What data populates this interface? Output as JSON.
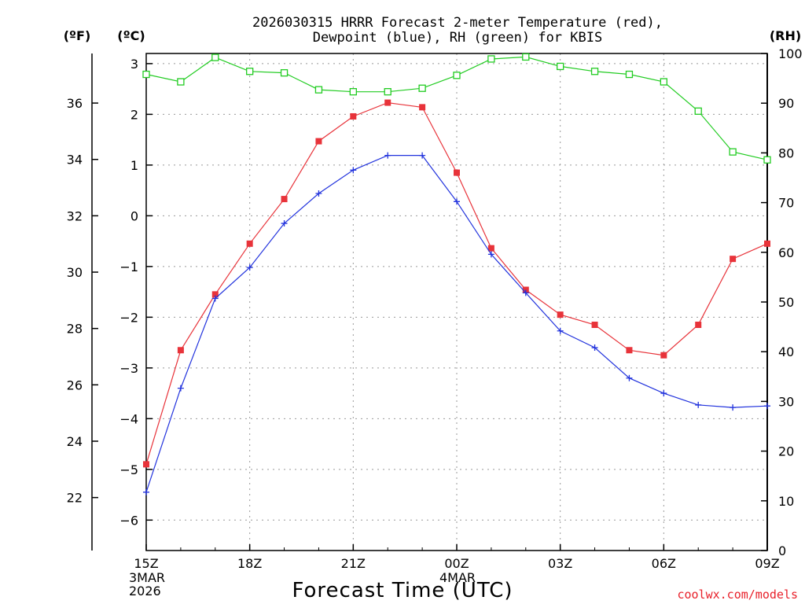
{
  "chart_data": {
    "type": "line",
    "title_lines": [
      "2026030315 HRRR Forecast 2-meter Temperature (red),",
      "Dewpoint (blue), RH (green) for KBIS"
    ],
    "xlabel": "Forecast Time (UTC)",
    "credit": "coolwx.com/models",
    "axes": {
      "left_f_unit": "(ºF)",
      "left_c_unit": "(ºC)",
      "right_unit": "(RH)",
      "c_range": [
        -6.6,
        3.2
      ],
      "rh_range": [
        0,
        100
      ],
      "f_ticks": [
        22,
        24,
        26,
        28,
        30,
        32,
        34,
        36
      ],
      "c_ticks": [
        -6,
        -5,
        -4,
        -3,
        -2,
        -1,
        0,
        1,
        2,
        3
      ],
      "rh_ticks": [
        0,
        10,
        20,
        30,
        40,
        50,
        60,
        70,
        80,
        90,
        100
      ],
      "x_ticks": [
        {
          "hour": 0,
          "label": "15Z",
          "date1": "3MAR",
          "date2": "2026"
        },
        {
          "hour": 3,
          "label": "18Z"
        },
        {
          "hour": 6,
          "label": "21Z"
        },
        {
          "hour": 9,
          "label": "00Z",
          "date1": "4MAR"
        },
        {
          "hour": 12,
          "label": "03Z"
        },
        {
          "hour": 15,
          "label": "06Z"
        },
        {
          "hour": 18,
          "label": "09Z"
        }
      ],
      "x_range": [
        0,
        18
      ],
      "grid": true
    },
    "colors": {
      "temperature": "#e8333a",
      "dewpoint": "#2233dd",
      "rh": "#22cc22",
      "grid": "#999999"
    },
    "series": [
      {
        "key": "temperature",
        "unit": "C",
        "marker": "filled-square",
        "values": [
          -4.9,
          -2.65,
          -1.55,
          -0.55,
          0.33,
          1.47,
          1.96,
          2.23,
          2.14,
          0.85,
          -0.64,
          -1.46,
          -1.95,
          -2.15,
          -2.65,
          -2.75,
          -2.15,
          -0.85,
          -0.55
        ]
      },
      {
        "key": "dewpoint",
        "unit": "C",
        "marker": "plus",
        "values": [
          -5.45,
          -3.4,
          -1.63,
          -1.02,
          -0.15,
          0.44,
          0.9,
          1.19,
          1.19,
          0.28,
          -0.76,
          -1.52,
          -2.27,
          -2.6,
          -3.2,
          -3.5,
          -3.73,
          -3.78,
          -3.75
        ]
      },
      {
        "key": "rh",
        "unit": "%",
        "marker": "open-square",
        "values": [
          95.8,
          94.3,
          99.2,
          96.4,
          96.1,
          92.7,
          92.3,
          92.3,
          93.0,
          95.6,
          98.9,
          99.3,
          97.4,
          96.4,
          95.8,
          94.3,
          88.4,
          80.2,
          78.6
        ]
      }
    ]
  }
}
